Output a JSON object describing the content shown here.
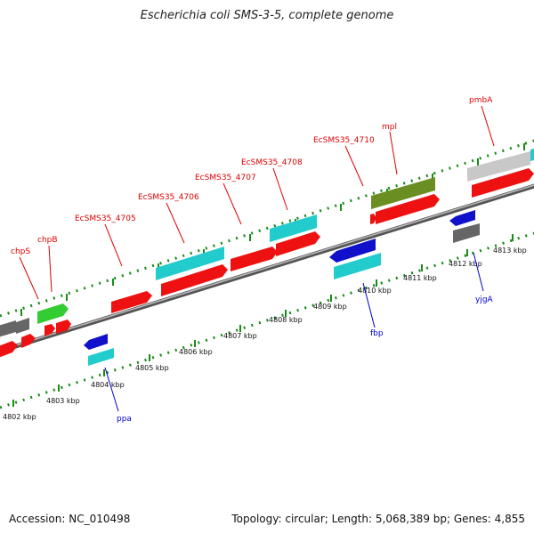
{
  "title": "Escherichia coli SMS-3-5, complete genome",
  "footer": {
    "accession": "Accession: NC_010498",
    "summary": "Topology: circular; Length: 5,068,389 bp; Genes: 4,855"
  },
  "colors": {
    "red_gene": "#ee1111",
    "blue_gene": "#1111cc",
    "cyan_gene": "#22cccc",
    "green_gene": "#33cc33",
    "olive_gene": "#6b8e23",
    "gray_gene": "#666666",
    "lightgray_gene": "#c8c8c8",
    "backbone": "#808080",
    "tick": "#1a8a1a",
    "label_red": "#dd0000",
    "label_blue": "#0000cc"
  },
  "scale_labels": [
    "4802 kbp",
    "4803 kbp",
    "4804 kbp",
    "4805 kbp",
    "4806 kbp",
    "4807 kbp",
    "4808 kbp",
    "4809 kbp",
    "4810 kbp",
    "4811 kbp",
    "4812 kbp",
    "4813 kbp"
  ],
  "gene_labels": {
    "chpS": "chpS",
    "chpB": "chpB",
    "ecsms35_4705": "EcSMS35_4705",
    "ecsms35_4706": "EcSMS35_4706",
    "ecsms35_4707": "EcSMS35_4707",
    "ecsms35_4708": "EcSMS35_4708",
    "ecsms35_4710": "EcSMS35_4710",
    "mpl": "mpl",
    "pmbA": "pmbA",
    "ppa": "ppa",
    "fbp": "fbp",
    "yjgA": "yjgA"
  }
}
